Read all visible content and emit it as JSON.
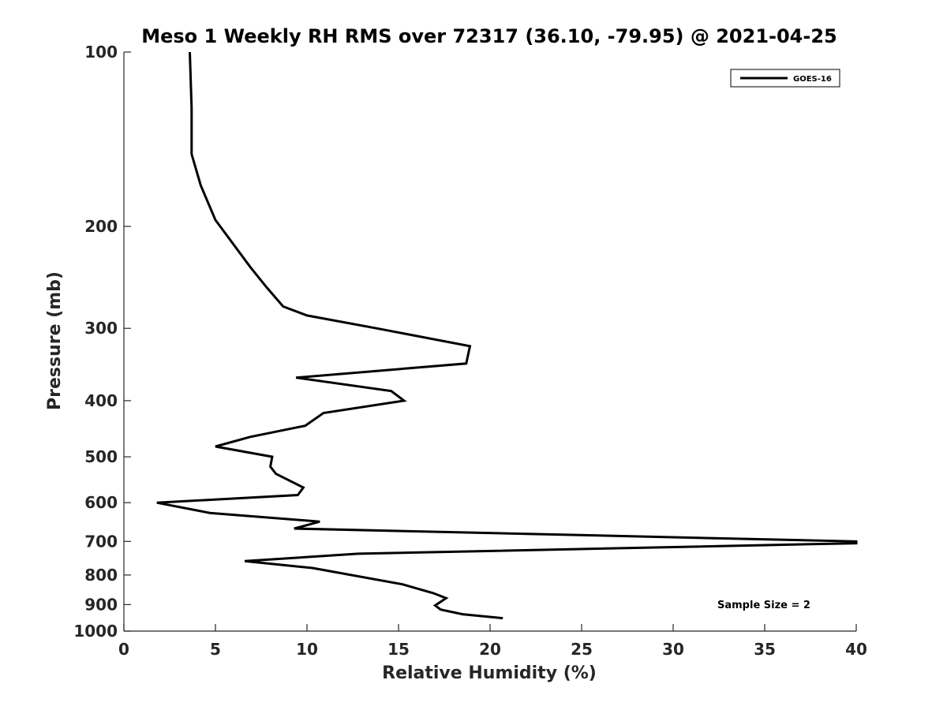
{
  "chart_data": {
    "type": "line",
    "title": "Meso 1 Weekly RH RMS over 72317 (36.10, -79.95) @ 2021-04-25",
    "xlabel": "Relative Humidity (%)",
    "ylabel": "Pressure (mb)",
    "xlim": [
      0,
      40
    ],
    "ylim": [
      100,
      1000
    ],
    "y_scale": "log",
    "y_reversed": true,
    "x_ticks": [
      0,
      5,
      10,
      15,
      20,
      25,
      30,
      35,
      40
    ],
    "y_ticks": [
      100,
      200,
      300,
      400,
      500,
      600,
      700,
      800,
      900,
      1000
    ],
    "grid": false,
    "legend_position": "top-right",
    "series": [
      {
        "name": "GOES-16",
        "color": "#000000",
        "points": [
          {
            "x": 3.6,
            "y": 100
          },
          {
            "x": 3.7,
            "y": 125
          },
          {
            "x": 3.7,
            "y": 150
          },
          {
            "x": 4.2,
            "y": 170
          },
          {
            "x": 5.0,
            "y": 195
          },
          {
            "x": 6.9,
            "y": 235
          },
          {
            "x": 7.8,
            "y": 255
          },
          {
            "x": 8.7,
            "y": 275
          },
          {
            "x": 10.0,
            "y": 285
          },
          {
            "x": 13.8,
            "y": 300
          },
          {
            "x": 18.9,
            "y": 322
          },
          {
            "x": 18.7,
            "y": 345
          },
          {
            "x": 9.4,
            "y": 365
          },
          {
            "x": 14.6,
            "y": 385
          },
          {
            "x": 15.3,
            "y": 400
          },
          {
            "x": 10.9,
            "y": 420
          },
          {
            "x": 9.9,
            "y": 442
          },
          {
            "x": 6.9,
            "y": 462
          },
          {
            "x": 5.0,
            "y": 480
          },
          {
            "x": 8.1,
            "y": 500
          },
          {
            "x": 8.0,
            "y": 520
          },
          {
            "x": 8.3,
            "y": 535
          },
          {
            "x": 9.8,
            "y": 565
          },
          {
            "x": 9.5,
            "y": 582
          },
          {
            "x": 1.8,
            "y": 600
          },
          {
            "x": 4.7,
            "y": 625
          },
          {
            "x": 10.7,
            "y": 647
          },
          {
            "x": 9.3,
            "y": 665
          },
          {
            "x": 40.0,
            "y": 700
          },
          {
            "x": 40.0,
            "y": 705
          },
          {
            "x": 12.8,
            "y": 735
          },
          {
            "x": 6.6,
            "y": 757
          },
          {
            "x": 10.3,
            "y": 778
          },
          {
            "x": 15.2,
            "y": 830
          },
          {
            "x": 16.9,
            "y": 860
          },
          {
            "x": 17.6,
            "y": 877
          },
          {
            "x": 17.0,
            "y": 903
          },
          {
            "x": 17.3,
            "y": 918
          },
          {
            "x": 18.5,
            "y": 935
          },
          {
            "x": 20.7,
            "y": 950
          }
        ]
      }
    ],
    "annotations": [
      {
        "text": "Sample Size = 2",
        "position": "bottom-right"
      }
    ]
  }
}
